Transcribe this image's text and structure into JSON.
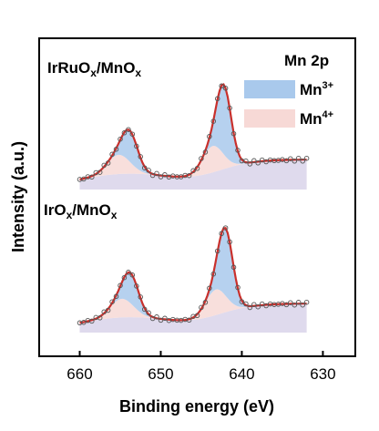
{
  "chart_data": {
    "type": "line",
    "title": "",
    "xlabel": "Binding energy (eV)",
    "ylabel": "Intensity (a.u.)",
    "x_reversed": true,
    "xlim": [
      665,
      626
    ],
    "x_ticks": [
      660,
      650,
      640,
      630
    ],
    "y_ticks_shown": false,
    "legend": {
      "title": "Mn 2p",
      "placement": "top-right",
      "entries": [
        {
          "base": "Mn",
          "sup": "3+",
          "color": "#a9c9ec"
        },
        {
          "base": "Mn",
          "sup": "4+",
          "color": "#f7d9d6"
        }
      ]
    },
    "colors": {
      "raw_data_markers": "#555555",
      "fit_line": "#c9302c",
      "background_fill": "#d9d4ea",
      "mn3_fill": "#a9c9ec",
      "mn4_fill": "#f7d9d6"
    },
    "samples": [
      {
        "label": {
          "a": "IrRuO",
          "sa": "x",
          "b": "/MnO",
          "sb": "x"
        },
        "mn3_peaks": [
          642.2,
          653.8
        ],
        "mn4_peaks": [
          643.6,
          655.2
        ],
        "range": [
          660,
          632
        ]
      },
      {
        "label": {
          "a": "IrO",
          "sa": "x",
          "b": "/MnO",
          "sb": "x"
        },
        "mn3_peaks": [
          642.0,
          653.7
        ],
        "mn4_peaks": [
          643.2,
          654.8
        ],
        "range": [
          660,
          632
        ]
      }
    ]
  }
}
